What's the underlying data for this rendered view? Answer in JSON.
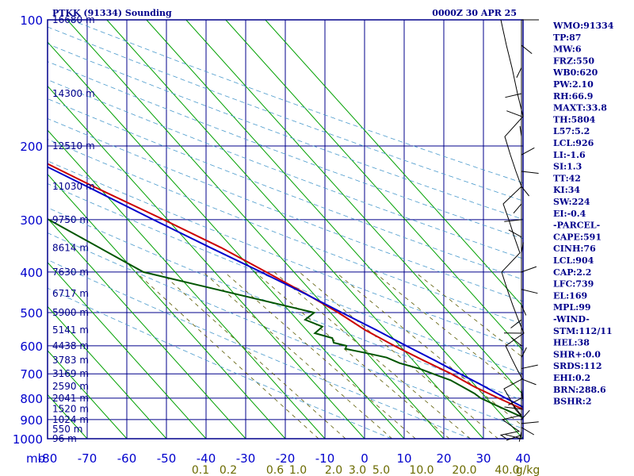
{
  "header": {
    "station_title": "PTKK (91334) Sounding",
    "valid_time": "0000Z 30 APR 25"
  },
  "chart_data": {
    "type": "skew-t log-p",
    "pressure_axis": {
      "unit_label": "mb",
      "ticks": [
        100,
        200,
        300,
        400,
        500,
        600,
        700,
        800,
        900,
        1000
      ],
      "range": [
        100,
        1000
      ],
      "scale": "log"
    },
    "temperature_axis": {
      "ticks": [
        -80,
        -70,
        -60,
        -50,
        -40,
        -30,
        -20,
        -10,
        0,
        10,
        20,
        30,
        40
      ],
      "range": [
        -80,
        40
      ]
    },
    "height_labels": [
      {
        "p": 100,
        "text": "16680 m"
      },
      {
        "p": 150,
        "text": "14300 m"
      },
      {
        "p": 200,
        "text": "12510 m"
      },
      {
        "p": 250,
        "text": "11030 m"
      },
      {
        "p": 300,
        "text": "9750 m"
      },
      {
        "p": 350,
        "text": "8614 m"
      },
      {
        "p": 400,
        "text": "7630 m"
      },
      {
        "p": 450,
        "text": "6717 m"
      },
      {
        "p": 500,
        "text": "5900 m"
      },
      {
        "p": 550,
        "text": "5141 m"
      },
      {
        "p": 600,
        "text": "4438 m"
      },
      {
        "p": 650,
        "text": "3783 m"
      },
      {
        "p": 700,
        "text": "3169 m"
      },
      {
        "p": 750,
        "text": "2590 m"
      },
      {
        "p": 800,
        "text": "2041 m"
      },
      {
        "p": 850,
        "text": "1520 m"
      },
      {
        "p": 900,
        "text": "1024 m"
      },
      {
        "p": 950,
        "text": "550 m"
      },
      {
        "p": 1000,
        "text": "96 m"
      }
    ],
    "mixing_ratio_labels": [
      "0.1",
      "0.2",
      "0.6",
      "1.0",
      "2.0",
      "3.0",
      "5.0",
      "10.0",
      "20.0",
      "40.0",
      "g/kg"
    ],
    "mixing_ratio_values": [
      0.1,
      0.2,
      0.6,
      1.0,
      2.0,
      3.0,
      5.0,
      10.0,
      20.0,
      40.0
    ],
    "series": [
      {
        "name": "temperature",
        "color": "#cc0000",
        "points": [
          [
            1000,
            29.8
          ],
          [
            950,
            24.2
          ],
          [
            925,
            21.8
          ],
          [
            900,
            20.6
          ],
          [
            850,
            16.6
          ],
          [
            800,
            13.0
          ],
          [
            750,
            9.4
          ],
          [
            700,
            6.6
          ],
          [
            650,
            2.6
          ],
          [
            600,
            -1.4
          ],
          [
            550,
            -5.2
          ],
          [
            500,
            -8.0
          ],
          [
            450,
            -12.0
          ],
          [
            400,
            -17.0
          ],
          [
            350,
            -22.8
          ],
          [
            300,
            -31.0
          ],
          [
            250,
            -41.2
          ],
          [
            200,
            -52.7
          ],
          [
            150,
            -65.0
          ],
          [
            125,
            -73.5
          ],
          [
            100,
            -82.5
          ]
        ]
      },
      {
        "name": "dewpoint",
        "color": "#005500",
        "points": [
          [
            1000,
            22.8
          ],
          [
            975,
            22.0
          ],
          [
            950,
            19.4
          ],
          [
            925,
            18.0
          ],
          [
            900,
            15.5
          ],
          [
            850,
            12.0
          ],
          [
            800,
            8.5
          ],
          [
            780,
            8.0
          ],
          [
            750,
            6.4
          ],
          [
            725,
            5.0
          ],
          [
            700,
            2.0
          ],
          [
            680,
            -0.3
          ],
          [
            660,
            -4.0
          ],
          [
            640,
            -6.0
          ],
          [
            625,
            -10.0
          ],
          [
            610,
            -14.4
          ],
          [
            600,
            -13.5
          ],
          [
            590,
            -16.0
          ],
          [
            575,
            -15.3
          ],
          [
            560,
            -18.6
          ],
          [
            540,
            -15.2
          ],
          [
            520,
            -18.0
          ],
          [
            500,
            -14.1
          ],
          [
            400,
            -48.0
          ],
          [
            300,
            -60.0
          ],
          [
            250,
            -70.0
          ],
          [
            200,
            -86.0
          ],
          [
            175,
            -93.0
          ],
          [
            150,
            -98.0
          ]
        ]
      },
      {
        "name": "parcel",
        "color": "#0000cc",
        "points": [
          [
            1000,
            29.8
          ],
          [
            960,
            25.4
          ],
          [
            904,
            21.3
          ],
          [
            860,
            18.3
          ],
          [
            800,
            14.8
          ],
          [
            739,
            11.4
          ],
          [
            700,
            8.8
          ],
          [
            650,
            5.5
          ],
          [
            600,
            1.6
          ],
          [
            550,
            -2.4
          ],
          [
            500,
            -7.1
          ],
          [
            450,
            -12.2
          ],
          [
            400,
            -18.3
          ],
          [
            350,
            -25.5
          ],
          [
            300,
            -33.6
          ],
          [
            250,
            -42.8
          ],
          [
            200,
            -54.3
          ],
          [
            169,
            -62.2
          ],
          [
            150,
            -67.3
          ],
          [
            125,
            -75.5
          ],
          [
            100,
            -85.5
          ]
        ]
      }
    ]
  },
  "indices": [
    "WMO:91334",
    "TP:87",
    "MW:6",
    "FRZ:550",
    "WB0:620",
    "PW:2.10",
    "RH:66.9",
    "MAXT:33.8",
    "TH:5804",
    "L57:5.2",
    "LCL:926",
    "LI:-1.6",
    "SI:1.3",
    "TT:42",
    "KI:34",
    "SW:224",
    "EI:-0.4",
    "-PARCEL-",
    "CAPE:591",
    "CINH:76",
    "LCL:904",
    "CAP:2.2",
    "LFC:739",
    "EL:169",
    "MPL:99",
    "-WIND-",
    "STM:112/11",
    "HEL:38",
    "SHR+:0.0",
    "SRDS:112",
    "EHI:0.2",
    "BRN:288.6",
    "BSHR:2"
  ],
  "colors": {
    "frame": "#00008b",
    "dry_adiabat": "#00a000",
    "moist_adiabat": "#4a9acc",
    "mixing_ratio": "#5a5a00",
    "temperature": "#cc0000",
    "dewpoint": "#005500",
    "parcel": "#0000cc"
  }
}
